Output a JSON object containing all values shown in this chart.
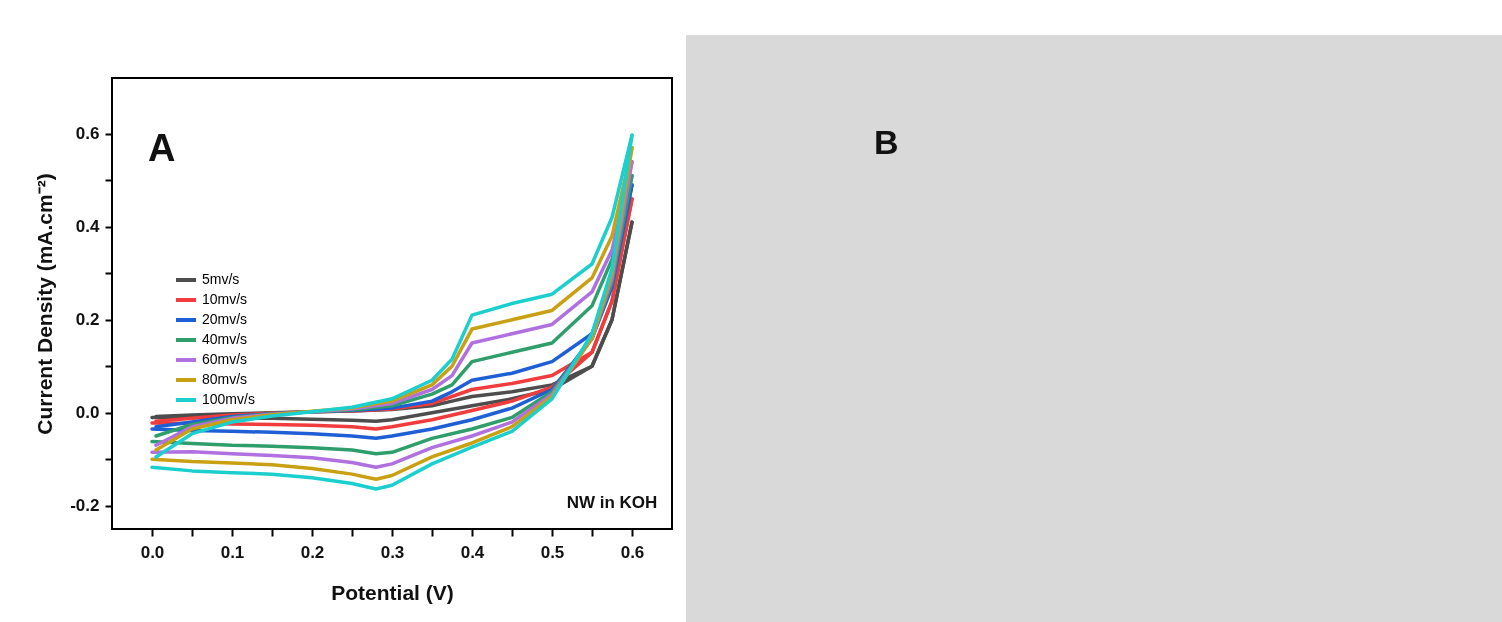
{
  "chart_data": [
    {
      "type": "line",
      "xlabel": "Potential (V)",
      "ylabel": "Current Density (mA.cm⁻²)",
      "annotations": [
        "A",
        "NW in KOH"
      ],
      "legend": "left",
      "xlim": [
        -0.05,
        0.65
      ],
      "ylim": [
        -0.25,
        0.72
      ],
      "xticks": [
        {
          "value": 0,
          "label": "0.0"
        },
        {
          "value": 0.05,
          "label": null
        },
        0.1,
        {
          "value": 0.15,
          "label": null
        },
        0.2,
        {
          "value": 0.25,
          "label": null
        },
        0.3,
        {
          "value": 0.35,
          "label": null
        },
        0.4,
        {
          "value": 0.45,
          "label": null
        },
        0.5,
        {
          "value": 0.55,
          "label": null
        },
        0.6
      ],
      "yticks": [
        -0.2,
        {
          "value": -0.1,
          "label": null
        },
        {
          "value": 0,
          "label": "0.0"
        },
        {
          "value": 0.1,
          "label": null
        },
        0.2,
        {
          "value": 0.3,
          "label": null
        },
        0.4,
        {
          "value": 0.5,
          "label": null
        },
        0.6
      ],
      "x": [
        0.005,
        0.05,
        0.1,
        0.15,
        0.2,
        0.25,
        0.3,
        0.35,
        0.375,
        0.4,
        0.45,
        0.5,
        0.55,
        0.575,
        0.6
      ],
      "series": [
        {
          "name": "5mv/s",
          "color": "#4d4d4d",
          "values": [
            -0.008,
            -0.005,
            -0.002,
            0,
            0.002,
            0.004,
            0.007,
            0.015,
            0.025,
            0.035,
            0.045,
            0.06,
            0.1,
            0.2,
            0.41
          ]
        },
        {
          "color": "#4d4d4d",
          "x": [
            0.6,
            0.575,
            0.55,
            0.5,
            0.45,
            0.4,
            0.35,
            0.3,
            0.28,
            0.25,
            0.2,
            0.15,
            0.1,
            0.05,
            0
          ],
          "values": [
            0.41,
            0.2,
            0.1,
            0.05,
            0.03,
            0.015,
            0,
            -0.015,
            -0.018,
            -0.016,
            -0.014,
            -0.012,
            -0.011,
            -0.01,
            -0.01
          ]
        },
        {
          "name": "10mv/s",
          "color": "#f03c3c",
          "values": [
            -0.018,
            -0.012,
            -0.005,
            -0.001,
            0.002,
            0.004,
            0.008,
            0.02,
            0.035,
            0.05,
            0.063,
            0.08,
            0.13,
            0.24,
            0.46
          ]
        },
        {
          "color": "#f03c3c",
          "x": [
            0.6,
            0.575,
            0.55,
            0.5,
            0.45,
            0.4,
            0.35,
            0.3,
            0.28,
            0.25,
            0.2,
            0.15,
            0.1,
            0.05,
            0
          ],
          "values": [
            0.46,
            0.24,
            0.13,
            0.055,
            0.025,
            0.005,
            -0.015,
            -0.03,
            -0.035,
            -0.03,
            -0.027,
            -0.025,
            -0.024,
            -0.023,
            -0.022
          ]
        },
        {
          "name": "20mv/s",
          "color": "#1f5fd6",
          "values": [
            -0.03,
            -0.02,
            -0.008,
            -0.002,
            0.002,
            0.005,
            0.01,
            0.025,
            0.045,
            0.07,
            0.085,
            0.11,
            0.17,
            0.28,
            0.49
          ]
        },
        {
          "color": "#1f5fd6",
          "x": [
            0.6,
            0.575,
            0.55,
            0.5,
            0.45,
            0.4,
            0.35,
            0.3,
            0.28,
            0.25,
            0.2,
            0.15,
            0.1,
            0.05,
            0
          ],
          "values": [
            0.49,
            0.27,
            0.16,
            0.05,
            0.01,
            -0.015,
            -0.035,
            -0.05,
            -0.055,
            -0.05,
            -0.045,
            -0.042,
            -0.04,
            -0.038,
            -0.035
          ]
        },
        {
          "name": "40mv/s",
          "color": "#2e9e6a",
          "values": [
            -0.05,
            -0.025,
            -0.01,
            -0.002,
            0.002,
            0.006,
            0.015,
            0.04,
            0.06,
            0.11,
            0.13,
            0.15,
            0.23,
            0.33,
            0.51
          ]
        },
        {
          "color": "#2e9e6a",
          "x": [
            0.6,
            0.575,
            0.55,
            0.5,
            0.45,
            0.4,
            0.35,
            0.3,
            0.28,
            0.25,
            0.2,
            0.15,
            0.1,
            0.05,
            0
          ],
          "values": [
            0.51,
            0.28,
            0.16,
            0.045,
            -0.01,
            -0.035,
            -0.055,
            -0.085,
            -0.088,
            -0.08,
            -0.075,
            -0.072,
            -0.07,
            -0.066,
            -0.062
          ]
        },
        {
          "name": "60mv/s",
          "color": "#b070e0",
          "values": [
            -0.07,
            -0.03,
            -0.012,
            -0.003,
            0.002,
            0.008,
            0.02,
            0.05,
            0.08,
            0.15,
            0.17,
            0.19,
            0.26,
            0.35,
            0.54
          ]
        },
        {
          "color": "#b070e0",
          "x": [
            0.6,
            0.575,
            0.55,
            0.5,
            0.45,
            0.4,
            0.35,
            0.3,
            0.28,
            0.25,
            0.2,
            0.15,
            0.1,
            0.05,
            0
          ],
          "values": [
            0.54,
            0.29,
            0.16,
            0.04,
            -0.02,
            -0.05,
            -0.075,
            -0.11,
            -0.117,
            -0.107,
            -0.097,
            -0.092,
            -0.088,
            -0.084,
            -0.085
          ]
        },
        {
          "name": "80mv/s",
          "color": "#c9a012",
          "values": [
            -0.08,
            -0.035,
            -0.015,
            -0.004,
            0.003,
            0.01,
            0.025,
            0.06,
            0.1,
            0.18,
            0.2,
            0.22,
            0.29,
            0.38,
            0.57
          ]
        },
        {
          "color": "#c9a012",
          "x": [
            0.6,
            0.575,
            0.55,
            0.5,
            0.45,
            0.4,
            0.35,
            0.3,
            0.28,
            0.25,
            0.2,
            0.15,
            0.1,
            0.05,
            0
          ],
          "values": [
            0.57,
            0.3,
            0.16,
            0.035,
            -0.03,
            -0.065,
            -0.095,
            -0.135,
            -0.143,
            -0.132,
            -0.12,
            -0.112,
            -0.108,
            -0.105,
            -0.1
          ]
        },
        {
          "name": "100mv/s",
          "color": "#1ccfcf",
          "values": [
            -0.095,
            -0.045,
            -0.02,
            -0.007,
            0.002,
            0.012,
            0.03,
            0.07,
            0.115,
            0.21,
            0.235,
            0.255,
            0.32,
            0.42,
            0.597
          ]
        },
        {
          "color": "#1ccfcf",
          "x": [
            0.6,
            0.575,
            0.55,
            0.5,
            0.45,
            0.4,
            0.35,
            0.3,
            0.28,
            0.25,
            0.2,
            0.15,
            0.1,
            0.05,
            0
          ],
          "values": [
            0.597,
            0.31,
            0.17,
            0.03,
            -0.04,
            -0.074,
            -0.11,
            -0.156,
            -0.164,
            -0.152,
            -0.14,
            -0.132,
            -0.129,
            -0.125,
            -0.117
          ]
        }
      ]
    },
    {
      "type": "other",
      "title": "B"
    }
  ]
}
